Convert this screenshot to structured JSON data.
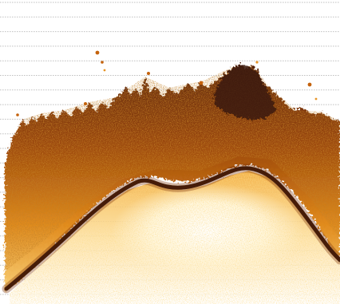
{
  "view": "echogram",
  "colors": {
    "background": "#ffffff",
    "grid": "#c2c2c2",
    "echo_weak": "#f7b33c",
    "echo_mid": "#d9700f",
    "echo_strong": "#8a3a05",
    "bottom_trace": "#2a1208",
    "fish_dark": "#3b1a08"
  },
  "grid": {
    "style": "dotted-horizontal",
    "visible": true
  },
  "features": [
    {
      "name": "seabed-trace",
      "description_visible": false
    },
    {
      "name": "fish-school-cloud",
      "description_visible": false
    }
  ]
}
